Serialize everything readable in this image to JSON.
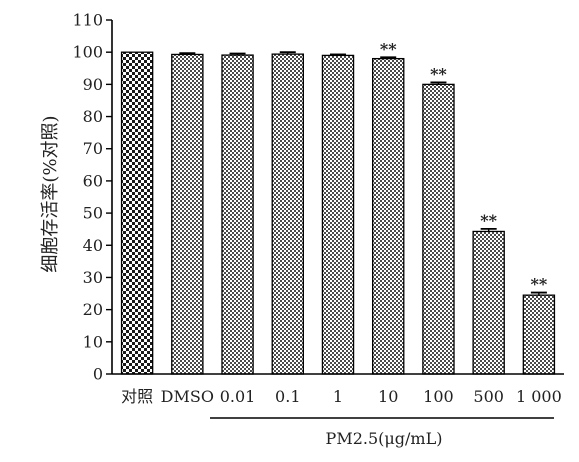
{
  "chart_data": {
    "type": "bar",
    "title": "",
    "ylabel": "细胞存活率(%对照)",
    "xlabel": "",
    "group_label": "PM2.5(μg/mL)",
    "categories": [
      "对照",
      "DMSO",
      "0.01",
      "0.1",
      "1",
      "10",
      "100",
      "500",
      "1 000"
    ],
    "values": [
      100,
      99.3,
      99.1,
      99.4,
      99.0,
      98.0,
      90.0,
      44.3,
      24.5
    ],
    "errors": [
      0.0,
      0.4,
      0.5,
      0.6,
      0.3,
      0.4,
      0.6,
      0.8,
      0.8
    ],
    "significance": [
      "",
      "",
      "",
      "",
      "",
      "**",
      "**",
      "**",
      "**"
    ],
    "ylim": [
      0,
      110
    ],
    "yticks": [
      0,
      10,
      20,
      30,
      40,
      50,
      60,
      70,
      80,
      90,
      100,
      110
    ],
    "grid": false,
    "colors": {
      "axis": "#000000",
      "bar_border": "#000000",
      "bar_dark": "#1a1a1a",
      "bar_light": "#ffffff"
    }
  }
}
